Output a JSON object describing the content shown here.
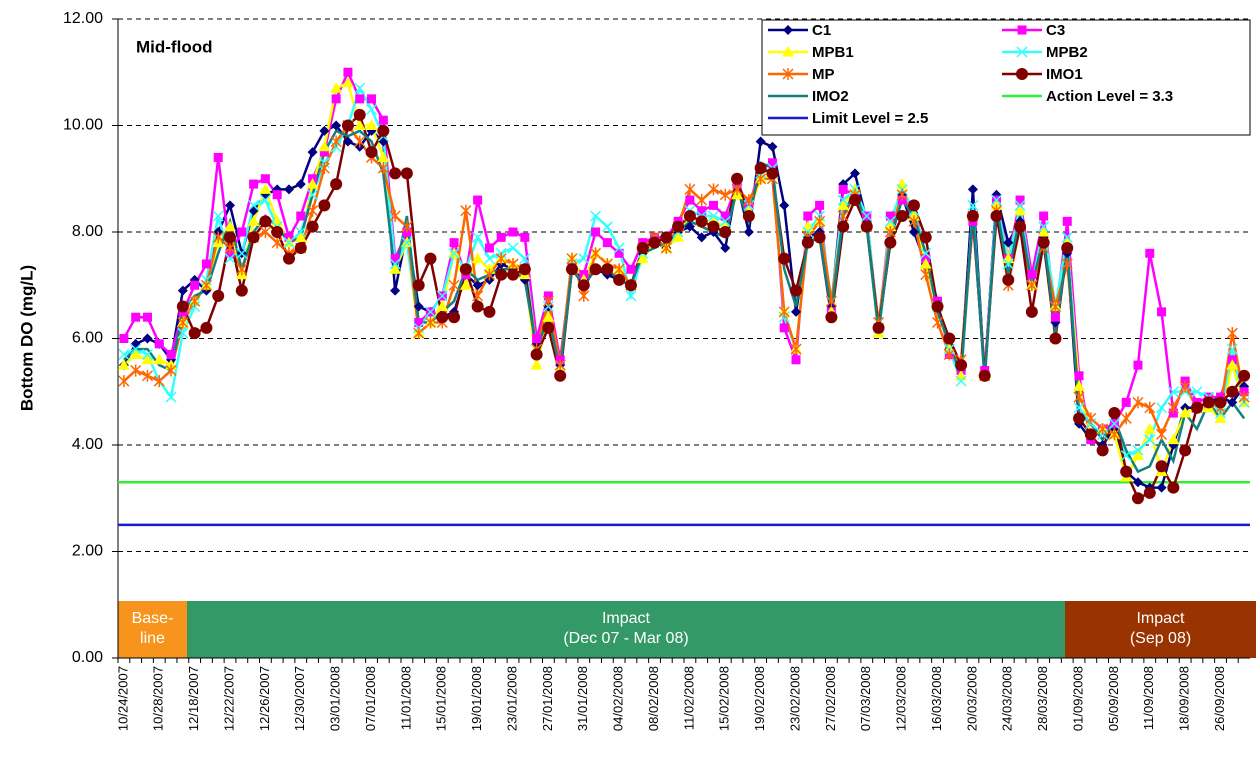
{
  "chart_data": {
    "type": "line",
    "annotation": "Mid-flood",
    "y_label": "Bottom DO (mg/L)",
    "ylim": [
      0,
      12
    ],
    "yticks": [
      {
        "value": 0,
        "label": "0.00"
      },
      {
        "value": 2,
        "label": "2.00"
      },
      {
        "value": 4,
        "label": "4.00"
      },
      {
        "value": 6,
        "label": "6.00"
      },
      {
        "value": 8,
        "label": "8.00"
      },
      {
        "value": 10,
        "label": "10.00"
      },
      {
        "value": 12,
        "label": "12.00"
      }
    ],
    "grid": true,
    "legend": "upper right",
    "categories": [
      "10/24/2007",
      null,
      null,
      "10/28/2007",
      null,
      null,
      "12/18/2007",
      null,
      null,
      "12/22/2007",
      null,
      null,
      "12/26/2007",
      null,
      null,
      "12/30/2007",
      null,
      null,
      "03/01/2008",
      null,
      null,
      "07/01/2008",
      null,
      null,
      "11/01/2008",
      null,
      null,
      "15/01/2008",
      null,
      null,
      "19/01/2008",
      null,
      null,
      "23/01/2008",
      null,
      null,
      "27/01/2008",
      null,
      null,
      "31/01/2008",
      null,
      null,
      "04/02/2008",
      null,
      null,
      "08/02/2008",
      null,
      null,
      "11/02/2008",
      null,
      null,
      "15/02/2008",
      null,
      null,
      "19/02/2008",
      null,
      null,
      "23/02/2008",
      null,
      null,
      "27/02/2008",
      null,
      null,
      "07/03/2008",
      null,
      null,
      "12/03/2008",
      null,
      null,
      "16/03/2008",
      null,
      null,
      "20/03/2008",
      null,
      null,
      "24/03/2008",
      null,
      null,
      "28/03/2008",
      null,
      null,
      "01/09/2008",
      null,
      null,
      "05/09/2008",
      null,
      null,
      "11/09/2008",
      null,
      null,
      "18/09/2008",
      null,
      null,
      "26/09/2008",
      null,
      null
    ],
    "series": [
      {
        "name": "C1",
        "color": "#000080",
        "marker": "diamond",
        "values": [
          5.5,
          5.9,
          6.0,
          5.9,
          5.6,
          6.9,
          7.1,
          6.9,
          8.0,
          8.5,
          7.6,
          8.4,
          8.7,
          8.8,
          8.8,
          8.9,
          9.5,
          9.9,
          10.0,
          9.7,
          9.6,
          9.9,
          9.7,
          6.9,
          8.0,
          6.6,
          6.5,
          6.4,
          6.5,
          7.2,
          7.0,
          7.1,
          7.4,
          7.3,
          7.1,
          5.9,
          6.6,
          5.5,
          7.3,
          7.1,
          7.3,
          7.2,
          7.1,
          7.0,
          7.6,
          7.8,
          7.7,
          8.0,
          8.1,
          7.9,
          8.0,
          7.7,
          8.9,
          8.0,
          9.7,
          9.6,
          8.5,
          6.5,
          7.9,
          8.0,
          6.6,
          8.9,
          9.1,
          8.2,
          6.2,
          7.8,
          8.7,
          8.0,
          7.4,
          6.6,
          5.8,
          5.4,
          8.8,
          5.3,
          8.7,
          7.8,
          8.2,
          7.2,
          7.9,
          6.3,
          7.6,
          4.4,
          4.1,
          4.0,
          4.3,
          3.5,
          3.3,
          3.2,
          3.2,
          4.0,
          4.7,
          4.7,
          4.8,
          4.9,
          4.8,
          5.1
        ]
      },
      {
        "name": "C3",
        "color": "#ff00ff",
        "marker": "square",
        "values": [
          6.0,
          6.4,
          6.4,
          5.9,
          5.7,
          6.5,
          7.0,
          7.4,
          9.4,
          7.6,
          8.0,
          8.9,
          9.0,
          8.7,
          7.9,
          8.3,
          9.0,
          9.5,
          10.5,
          11.0,
          10.5,
          10.5,
          10.1,
          7.5,
          8.0,
          6.3,
          6.5,
          6.8,
          7.8,
          7.2,
          8.6,
          7.7,
          7.9,
          8.0,
          7.9,
          6.0,
          6.8,
          5.6,
          7.4,
          7.2,
          8.0,
          7.8,
          7.6,
          7.3,
          7.8,
          7.9,
          7.9,
          8.2,
          8.6,
          8.4,
          8.5,
          8.3,
          8.9,
          8.5,
          9.2,
          9.3,
          6.2,
          5.6,
          8.3,
          8.5,
          6.5,
          8.8,
          8.7,
          8.3,
          6.2,
          8.3,
          8.6,
          8.5,
          7.5,
          6.7,
          5.7,
          5.4,
          8.2,
          5.4,
          8.6,
          7.5,
          8.6,
          7.2,
          8.3,
          6.4,
          8.2,
          5.3,
          4.1,
          4.3,
          4.4,
          4.8,
          5.5,
          7.6,
          6.5,
          4.6,
          5.2,
          4.8,
          4.9,
          4.9,
          5.6,
          5.0
        ]
      },
      {
        "name": "MPB1",
        "color": "#ffff00",
        "marker": "triangle",
        "values": [
          5.5,
          5.7,
          5.6,
          5.6,
          5.5,
          6.3,
          6.7,
          7.0,
          7.8,
          8.1,
          7.2,
          8.2,
          8.8,
          8.2,
          7.8,
          7.9,
          8.9,
          9.6,
          10.7,
          10.8,
          10.0,
          10.0,
          9.4,
          7.3,
          7.8,
          6.1,
          6.3,
          6.6,
          7.6,
          7.0,
          7.5,
          7.3,
          7.5,
          7.4,
          7.2,
          5.5,
          6.4,
          5.4,
          7.5,
          7.1,
          7.6,
          7.4,
          7.3,
          7.0,
          7.5,
          7.8,
          7.7,
          7.9,
          8.3,
          8.2,
          8.2,
          8.1,
          8.7,
          8.4,
          9.0,
          9.1,
          6.5,
          5.8,
          8.1,
          8.2,
          6.5,
          8.5,
          8.8,
          8.1,
          6.1,
          8.1,
          8.9,
          8.3,
          7.4,
          6.6,
          5.8,
          5.3,
          8.3,
          5.3,
          8.5,
          7.5,
          8.4,
          7.0,
          8.0,
          6.6,
          7.8,
          5.1,
          4.2,
          4.3,
          4.2,
          3.4,
          3.8,
          4.3,
          3.5,
          4.1,
          4.6,
          4.7,
          4.7,
          4.5,
          5.5,
          4.8
        ]
      },
      {
        "name": "MPB2",
        "color": "#33ffff",
        "marker": "x",
        "values": [
          5.7,
          5.8,
          5.7,
          5.2,
          4.9,
          6.1,
          6.6,
          7.1,
          8.3,
          7.5,
          7.6,
          8.5,
          8.6,
          8.1,
          7.8,
          8.0,
          8.7,
          9.3,
          9.6,
          10.0,
          10.7,
          10.3,
          9.8,
          7.4,
          7.8,
          6.2,
          6.5,
          6.8,
          7.6,
          7.3,
          7.9,
          7.5,
          7.6,
          7.7,
          7.5,
          5.8,
          6.6,
          5.5,
          7.4,
          7.5,
          8.3,
          8.1,
          7.7,
          6.8,
          7.6,
          7.9,
          7.7,
          8.0,
          8.4,
          8.3,
          8.3,
          8.2,
          8.8,
          8.5,
          9.1,
          9.2,
          6.4,
          5.8,
          8.0,
          8.3,
          6.7,
          8.6,
          8.8,
          8.3,
          6.2,
          8.2,
          8.8,
          8.4,
          7.6,
          6.6,
          5.8,
          5.2,
          8.5,
          5.3,
          8.6,
          7.4,
          8.5,
          7.0,
          8.1,
          6.6,
          7.9,
          4.7,
          4.4,
          4.2,
          4.4,
          3.8,
          3.9,
          4.1,
          4.7,
          5.0,
          5.0,
          5.0,
          4.9,
          4.6,
          5.8,
          4.8
        ]
      },
      {
        "name": "MP",
        "color": "#ff6600",
        "marker": "star",
        "values": [
          5.2,
          5.4,
          5.3,
          5.2,
          5.4,
          6.3,
          6.7,
          7.0,
          7.9,
          7.7,
          7.3,
          7.9,
          8.0,
          7.8,
          7.6,
          7.7,
          8.4,
          9.2,
          9.7,
          10.0,
          9.7,
          9.4,
          9.2,
          8.3,
          8.1,
          6.1,
          6.3,
          6.3,
          7.0,
          8.4,
          6.8,
          7.2,
          7.5,
          7.4,
          7.3,
          5.8,
          6.7,
          5.5,
          7.5,
          6.8,
          7.6,
          7.4,
          7.3,
          7.0,
          7.7,
          7.9,
          7.7,
          8.1,
          8.8,
          8.6,
          8.8,
          8.7,
          8.8,
          8.6,
          9.0,
          9.0,
          6.5,
          5.8,
          7.9,
          8.2,
          6.7,
          8.3,
          8.7,
          8.1,
          6.3,
          8.0,
          8.7,
          8.2,
          7.2,
          6.3,
          5.7,
          5.6,
          8.3,
          5.3,
          8.4,
          7.0,
          8.1,
          7.0,
          7.7,
          6.6,
          7.4,
          4.9,
          4.5,
          4.3,
          4.2,
          4.5,
          4.8,
          4.7,
          4.2,
          4.7,
          5.1,
          4.7,
          4.8,
          4.7,
          6.1,
          4.9
        ]
      },
      {
        "name": "IMO1",
        "color": "#800000",
        "marker": "circle",
        "values": [
          null,
          null,
          null,
          null,
          null,
          6.6,
          6.1,
          6.2,
          6.8,
          7.9,
          6.9,
          7.9,
          8.2,
          8.0,
          7.5,
          7.7,
          8.1,
          8.5,
          8.9,
          10.0,
          10.2,
          9.5,
          9.9,
          9.1,
          9.1,
          7.0,
          7.5,
          6.4,
          6.4,
          7.3,
          6.6,
          6.5,
          7.2,
          7.2,
          7.3,
          5.7,
          6.2,
          5.3,
          7.3,
          7.0,
          7.3,
          7.3,
          7.1,
          7.0,
          7.7,
          7.8,
          7.9,
          8.1,
          8.3,
          8.2,
          8.1,
          8.0,
          9.0,
          8.3,
          9.2,
          9.1,
          7.5,
          6.9,
          7.8,
          7.9,
          6.4,
          8.1,
          8.6,
          8.1,
          6.2,
          7.8,
          8.3,
          8.5,
          7.9,
          6.6,
          6.0,
          5.5,
          8.3,
          5.3,
          8.3,
          7.1,
          8.1,
          6.5,
          7.8,
          6.0,
          7.7,
          4.5,
          4.2,
          3.9,
          4.6,
          3.5,
          3.0,
          3.1,
          3.6,
          3.2,
          3.9,
          4.7,
          4.8,
          4.8,
          5.0,
          5.3
        ]
      },
      {
        "name": "IMO2",
        "color": "#138080",
        "marker": "none",
        "values": [
          5.6,
          5.8,
          5.8,
          5.5,
          5.4,
          6.5,
          6.8,
          6.9,
          7.6,
          8.2,
          7.3,
          8.0,
          8.3,
          8.1,
          7.8,
          7.9,
          8.7,
          9.5,
          9.9,
          9.8,
          9.9,
          9.7,
          9.1,
          7.2,
          8.3,
          6.3,
          6.3,
          6.5,
          6.7,
          7.3,
          7.1,
          7.2,
          7.3,
          7.3,
          7.1,
          5.8,
          6.4,
          5.4,
          7.3,
          7.0,
          7.3,
          7.3,
          7.1,
          7.0,
          7.6,
          7.7,
          7.8,
          8.0,
          8.2,
          8.1,
          8.0,
          7.9,
          8.8,
          8.2,
          9.3,
          9.2,
          7.3,
          6.6,
          7.8,
          7.9,
          6.5,
          8.3,
          8.8,
          8.1,
          6.1,
          7.9,
          8.6,
          8.3,
          7.6,
          6.5,
          5.9,
          5.3,
          8.4,
          5.2,
          8.5,
          7.2,
          8.3,
          7.0,
          7.9,
          6.1,
          7.7,
          4.6,
          4.4,
          4.1,
          4.5,
          3.9,
          3.5,
          3.6,
          4.1,
          3.7,
          4.6,
          4.3,
          4.8,
          4.5,
          4.8,
          4.5
        ]
      }
    ],
    "reference_lines": [
      {
        "name": "Action Level = 3.3",
        "value": 3.3,
        "color": "#33ee33"
      },
      {
        "name": "Limit Level = 2.5",
        "value": 2.5,
        "color": "#1a1ad0"
      }
    ],
    "phases": [
      {
        "label": [
          "Base-",
          "line"
        ],
        "color": "#f7941d"
      },
      {
        "label": [
          "Impact",
          "(Dec 07 - Mar 08)"
        ],
        "color": "#339966"
      },
      {
        "label": [
          "Impact",
          "(Sep 08)"
        ],
        "color": "#993300"
      }
    ]
  }
}
